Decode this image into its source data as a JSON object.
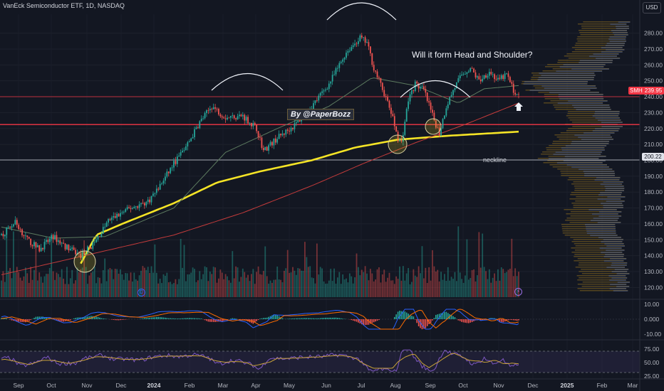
{
  "header": {
    "title": "VanEck Semiconductor ETF, 1D, NASDAQ",
    "currency": "USD"
  },
  "annotations": {
    "watermark": "By @PaperBozz",
    "question": "Will it form Head and Shoulder?",
    "neckline_label": "neckline"
  },
  "price_tags": {
    "symbol": "SMH",
    "last_price": "239.95",
    "neckline_price": "200.22"
  },
  "colors": {
    "background": "#131722",
    "up": "#26a69a",
    "down": "#ef5350",
    "ma_fast": "#5c7a5f",
    "ma_yellow": "#f5e426",
    "ma_red": "#c43b3b",
    "horizontal_red": "#f23645",
    "neckline": "#d1d4dc",
    "volume_profile_up": "#2a4a94",
    "volume_profile_down": "#8a6a1e"
  },
  "chart_data": {
    "type": "candlestick",
    "title": "VanEck Semiconductor ETF, 1D, NASDAQ",
    "price_axis": {
      "ylim": [
        113,
        291
      ],
      "ticks": [
        120,
        130,
        140,
        150,
        160,
        170,
        180,
        190,
        200,
        210,
        220,
        230,
        240,
        250,
        260,
        270,
        280
      ]
    },
    "time_axis": {
      "labels": [
        "Sep",
        "Oct",
        "Nov",
        "Dec",
        "2024",
        "Feb",
        "Mar",
        "Apr",
        "May",
        "Jun",
        "Jul",
        "Aug",
        "Sep",
        "Oct",
        "Nov",
        "Dec",
        "2025",
        "Feb",
        "Mar"
      ]
    },
    "price_keypoints": [
      {
        "t": 0,
        "p": 153
      },
      {
        "t": 8,
        "p": 161
      },
      {
        "t": 15,
        "p": 150
      },
      {
        "t": 22,
        "p": 144
      },
      {
        "t": 30,
        "p": 152
      },
      {
        "t": 37,
        "p": 146
      },
      {
        "t": 46,
        "p": 140
      },
      {
        "t": 54,
        "p": 148
      },
      {
        "t": 62,
        "p": 162
      },
      {
        "t": 75,
        "p": 170
      },
      {
        "t": 85,
        "p": 174
      },
      {
        "t": 92,
        "p": 184
      },
      {
        "t": 100,
        "p": 198
      },
      {
        "t": 108,
        "p": 210
      },
      {
        "t": 115,
        "p": 224
      },
      {
        "t": 122,
        "p": 234
      },
      {
        "t": 130,
        "p": 227
      },
      {
        "t": 140,
        "p": 228
      },
      {
        "t": 148,
        "p": 220
      },
      {
        "t": 152,
        "p": 206
      },
      {
        "t": 160,
        "p": 214
      },
      {
        "t": 170,
        "p": 222
      },
      {
        "t": 180,
        "p": 234
      },
      {
        "t": 190,
        "p": 248
      },
      {
        "t": 200,
        "p": 268
      },
      {
        "t": 208,
        "p": 277
      },
      {
        "t": 212,
        "p": 274
      },
      {
        "t": 216,
        "p": 258
      },
      {
        "t": 222,
        "p": 242
      },
      {
        "t": 226,
        "p": 230
      },
      {
        "t": 230,
        "p": 214
      },
      {
        "t": 232,
        "p": 211
      },
      {
        "t": 236,
        "p": 238
      },
      {
        "t": 240,
        "p": 248
      },
      {
        "t": 245,
        "p": 244
      },
      {
        "t": 250,
        "p": 228
      },
      {
        "t": 254,
        "p": 217
      },
      {
        "t": 258,
        "p": 234
      },
      {
        "t": 262,
        "p": 244
      },
      {
        "t": 267,
        "p": 254
      },
      {
        "t": 272,
        "p": 258
      },
      {
        "t": 277,
        "p": 250
      },
      {
        "t": 283,
        "p": 256
      },
      {
        "t": 288,
        "p": 250
      },
      {
        "t": 293,
        "p": 254
      },
      {
        "t": 297,
        "p": 244
      },
      {
        "t": 300,
        "p": 240
      }
    ],
    "moving_averages": [
      {
        "name": "",
        "color": "#f5e426",
        "points": [
          {
            "t": 46,
            "p": 135
          },
          {
            "t": 55,
            "p": 153
          },
          {
            "t": 70,
            "p": 160
          },
          {
            "t": 100,
            "p": 173
          },
          {
            "t": 125,
            "p": 186
          },
          {
            "t": 150,
            "p": 193
          },
          {
            "t": 180,
            "p": 200
          },
          {
            "t": 205,
            "p": 208
          },
          {
            "t": 230,
            "p": 213
          },
          {
            "t": 260,
            "p": 215.5
          },
          {
            "t": 300,
            "p": 218
          }
        ]
      },
      {
        "name": "",
        "color": "#c43b3b",
        "points": [
          {
            "t": 0,
            "p": 128
          },
          {
            "t": 60,
            "p": 143
          },
          {
            "t": 100,
            "p": 153
          },
          {
            "t": 140,
            "p": 167
          },
          {
            "t": 180,
            "p": 184
          },
          {
            "t": 210,
            "p": 198
          },
          {
            "t": 240,
            "p": 211
          },
          {
            "t": 270,
            "p": 223
          },
          {
            "t": 300,
            "p": 236
          }
        ]
      },
      {
        "name": "",
        "color": "#5c7a5f",
        "points": [
          {
            "t": 0,
            "p": 158
          },
          {
            "t": 30,
            "p": 151
          },
          {
            "t": 60,
            "p": 152
          },
          {
            "t": 100,
            "p": 170
          },
          {
            "t": 130,
            "p": 205
          },
          {
            "t": 160,
            "p": 220
          },
          {
            "t": 190,
            "p": 234
          },
          {
            "t": 215,
            "p": 252
          },
          {
            "t": 240,
            "p": 247
          },
          {
            "t": 265,
            "p": 236
          },
          {
            "t": 280,
            "p": 245
          },
          {
            "t": 300,
            "p": 247
          }
        ]
      }
    ],
    "horizontal_levels": [
      {
        "price": 240,
        "color": "#f23645"
      },
      {
        "price": 222.5,
        "color": "#f23645"
      },
      {
        "price": 200.22,
        "color": "#d1d4dc",
        "label": "neckline"
      }
    ],
    "indicator_macd": {
      "ticks": [
        "10.00",
        "0.000",
        "-10.00"
      ]
    },
    "indicator_rsi": {
      "ticks": [
        "75.00",
        "50.00",
        "25.00"
      ]
    }
  }
}
